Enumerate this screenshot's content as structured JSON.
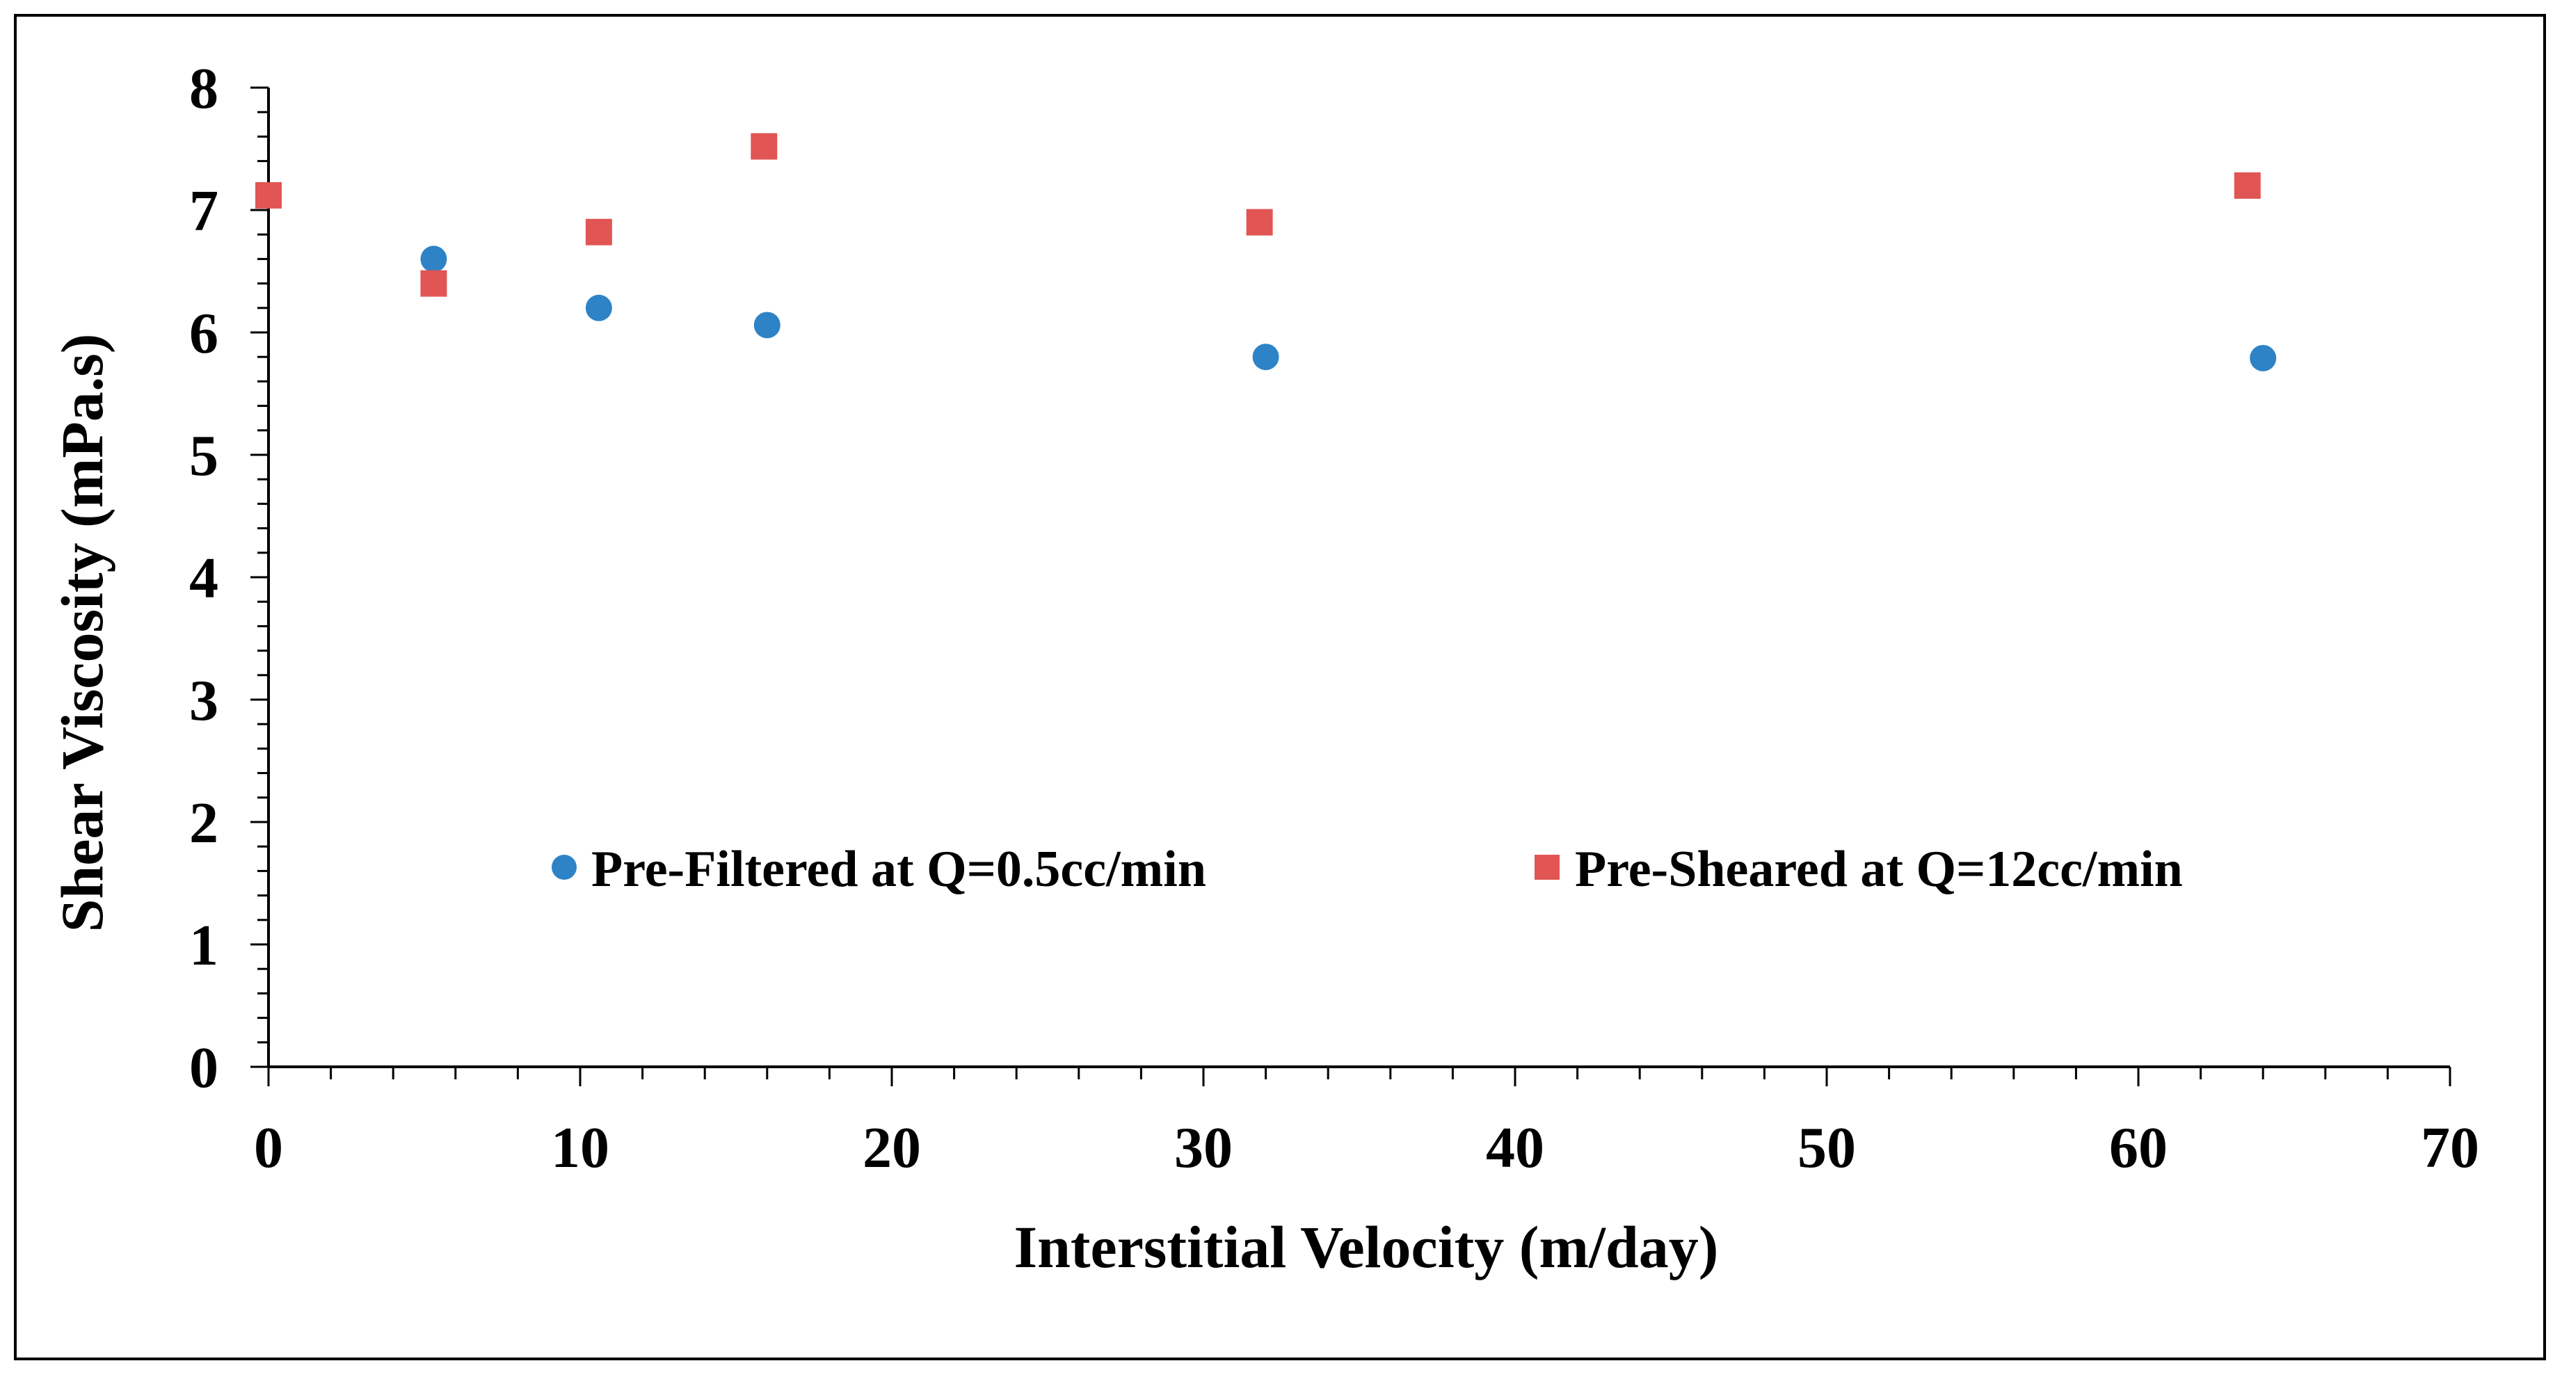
{
  "chart_data": {
    "type": "scatter",
    "title": "",
    "xlabel": "Interstitial Velocity (m/day)",
    "ylabel": "Shear Viscosity (mPa.s)",
    "xlim": [
      0,
      70
    ],
    "ylim": [
      0,
      8
    ],
    "x_major_step": 10,
    "x_minor_step": 2,
    "y_major_step": 1,
    "y_minor_step": 0.2,
    "grid": false,
    "legend_position": "inside-lower-center",
    "series": [
      {
        "name": "Pre-Filtered at Q=0.5cc/min",
        "marker": "circle",
        "color": "#2E83C6",
        "x": [
          5.3,
          10.6,
          16.0,
          32.0,
          64.0
        ],
        "y": [
          6.6,
          6.2,
          6.06,
          5.8,
          5.79
        ]
      },
      {
        "name": "Pre-Sheared at Q=12cc/min",
        "marker": "square",
        "color": "#E15554",
        "x": [
          0.0,
          5.3,
          10.6,
          15.9,
          31.8,
          63.5
        ],
        "y": [
          7.12,
          6.4,
          6.82,
          7.52,
          6.9,
          7.2
        ]
      }
    ]
  }
}
